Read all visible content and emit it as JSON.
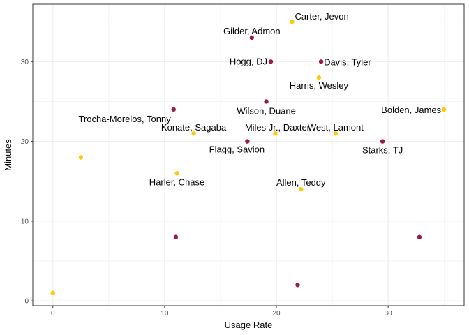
{
  "chart_data": {
    "type": "scatter",
    "xlabel": "Usage Rate",
    "ylabel": "Minutes",
    "xlim": [
      -1.8,
      36.8
    ],
    "ylim": [
      -0.6,
      37.2
    ],
    "xticks": [
      0,
      10,
      20,
      30
    ],
    "yticks": [
      0,
      10,
      20,
      30
    ],
    "grid": true,
    "colors": {
      "maroon": "#9b1b47",
      "gold": "#ffc90a"
    },
    "points": [
      {
        "x": 0.0,
        "y": 1,
        "color": "gold",
        "label": ""
      },
      {
        "x": 2.5,
        "y": 18,
        "color": "gold",
        "label": ""
      },
      {
        "x": 10.8,
        "y": 24,
        "color": "maroon",
        "label": "Trocha-Morelos, Tonny"
      },
      {
        "x": 11.0,
        "y": 8,
        "color": "maroon",
        "label": ""
      },
      {
        "x": 11.1,
        "y": 16,
        "color": "gold",
        "label": "Harler, Chase"
      },
      {
        "x": 12.6,
        "y": 21,
        "color": "gold",
        "label": "Konate, Sagaba"
      },
      {
        "x": 17.4,
        "y": 20,
        "color": "maroon",
        "label": "Flagg, Savion"
      },
      {
        "x": 17.8,
        "y": 33,
        "color": "maroon",
        "label": "Gilder, Admon"
      },
      {
        "x": 19.1,
        "y": 25,
        "color": "maroon",
        "label": "Wilson, Duane"
      },
      {
        "x": 19.5,
        "y": 30,
        "color": "maroon",
        "label": "Hogg, DJ"
      },
      {
        "x": 19.9,
        "y": 21,
        "color": "gold",
        "label": "Miles Jr., Daxter"
      },
      {
        "x": 21.4,
        "y": 35,
        "color": "gold",
        "label": "Carter, Jevon"
      },
      {
        "x": 21.9,
        "y": 2,
        "color": "maroon",
        "label": ""
      },
      {
        "x": 22.2,
        "y": 14,
        "color": "gold",
        "label": "Allen, Teddy"
      },
      {
        "x": 23.8,
        "y": 28,
        "color": "gold",
        "label": "Harris, Wesley"
      },
      {
        "x": 24.0,
        "y": 30,
        "color": "maroon",
        "label": "Davis, Tyler"
      },
      {
        "x": 25.3,
        "y": 21,
        "color": "gold",
        "label": "West, Lamont"
      },
      {
        "x": 29.5,
        "y": 20,
        "color": "maroon",
        "label": "Starks, TJ"
      },
      {
        "x": 32.8,
        "y": 8,
        "color": "maroon",
        "label": ""
      },
      {
        "x": 35.0,
        "y": 24,
        "color": "gold",
        "label": "Bolden, James"
      }
    ]
  }
}
